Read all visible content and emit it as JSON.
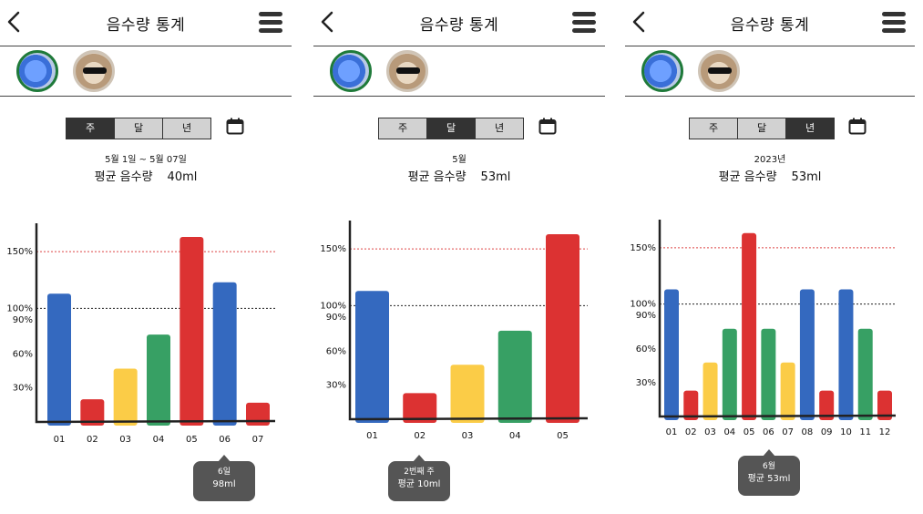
{
  "colors": {
    "blue": "#3469bf",
    "red": "#dc3232",
    "yellow": "#fbcc47",
    "green": "#37a064",
    "axis": "#222",
    "line150": "#d44",
    "line100": "#222"
  },
  "icons": {
    "back": "chevron-left-icon",
    "menu": "hamburger-menu-icon",
    "calendar": "calendar-icon"
  },
  "panels": [
    {
      "title": "음수량 통계",
      "tabs": [
        {
          "label": "주",
          "active": true
        },
        {
          "label": "달",
          "active": false
        },
        {
          "label": "년",
          "active": false
        }
      ],
      "range_text": "5월 1일 ~ 5월 07일",
      "avg_label": "평균 음수량",
      "avg_value": "40ml",
      "tooltip": {
        "line1": "6일",
        "line2": "98ml"
      }
    },
    {
      "title": "음수량 통계",
      "tabs": [
        {
          "label": "주",
          "active": false
        },
        {
          "label": "달",
          "active": true
        },
        {
          "label": "년",
          "active": false
        }
      ],
      "range_text": "5월",
      "avg_label": "평균 음수량",
      "avg_value": "53ml",
      "tooltip": {
        "line1": "2번째 주",
        "line2": "평균 10ml"
      }
    },
    {
      "title": "음수량 통계",
      "tabs": [
        {
          "label": "주",
          "active": false
        },
        {
          "label": "달",
          "active": false
        },
        {
          "label": "년",
          "active": true
        }
      ],
      "range_text": "2023년",
      "avg_label": "평균 음수량",
      "avg_value": "53ml",
      "tooltip": {
        "line1": "6월",
        "line2": "평균 53ml"
      }
    }
  ],
  "chart_data": [
    {
      "type": "bar",
      "categories": [
        "01",
        "02",
        "03",
        "04",
        "05",
        "06",
        "07"
      ],
      "values": [
        113,
        20,
        47,
        77,
        163,
        123,
        17
      ],
      "colors": [
        "blue",
        "red",
        "yellow",
        "green",
        "red",
        "blue",
        "red"
      ],
      "yticks": [
        "150%",
        "100%",
        "90%",
        "60%",
        "30%"
      ],
      "ytick_values": [
        150,
        100,
        90,
        60,
        30
      ],
      "reference_lines": [
        150,
        100
      ],
      "ylim": [
        0,
        175
      ],
      "unit": "%"
    },
    {
      "type": "bar",
      "categories": [
        "01",
        "02",
        "03",
        "04",
        "05"
      ],
      "values": [
        113,
        23,
        48,
        78,
        163
      ],
      "colors": [
        "blue",
        "red",
        "yellow",
        "green",
        "red"
      ],
      "yticks": [
        "150%",
        "100%",
        "90%",
        "60%",
        "30%"
      ],
      "ytick_values": [
        150,
        100,
        90,
        60,
        30
      ],
      "reference_lines": [
        150,
        100
      ],
      "ylim": [
        0,
        175
      ],
      "unit": "%"
    },
    {
      "type": "bar",
      "categories": [
        "01",
        "02",
        "03",
        "04",
        "05",
        "06",
        "07",
        "08",
        "09",
        "10",
        "11",
        "12"
      ],
      "values": [
        113,
        23,
        48,
        78,
        163,
        78,
        48,
        113,
        23,
        113,
        78,
        23
      ],
      "colors": [
        "blue",
        "red",
        "yellow",
        "green",
        "red",
        "green",
        "yellow",
        "blue",
        "red",
        "blue",
        "green",
        "red"
      ],
      "yticks": [
        "150%",
        "100%",
        "90%",
        "60%",
        "30%"
      ],
      "ytick_values": [
        150,
        100,
        90,
        60,
        30
      ],
      "reference_lines": [
        150,
        100
      ],
      "ylim": [
        0,
        175
      ],
      "unit": "%"
    }
  ]
}
